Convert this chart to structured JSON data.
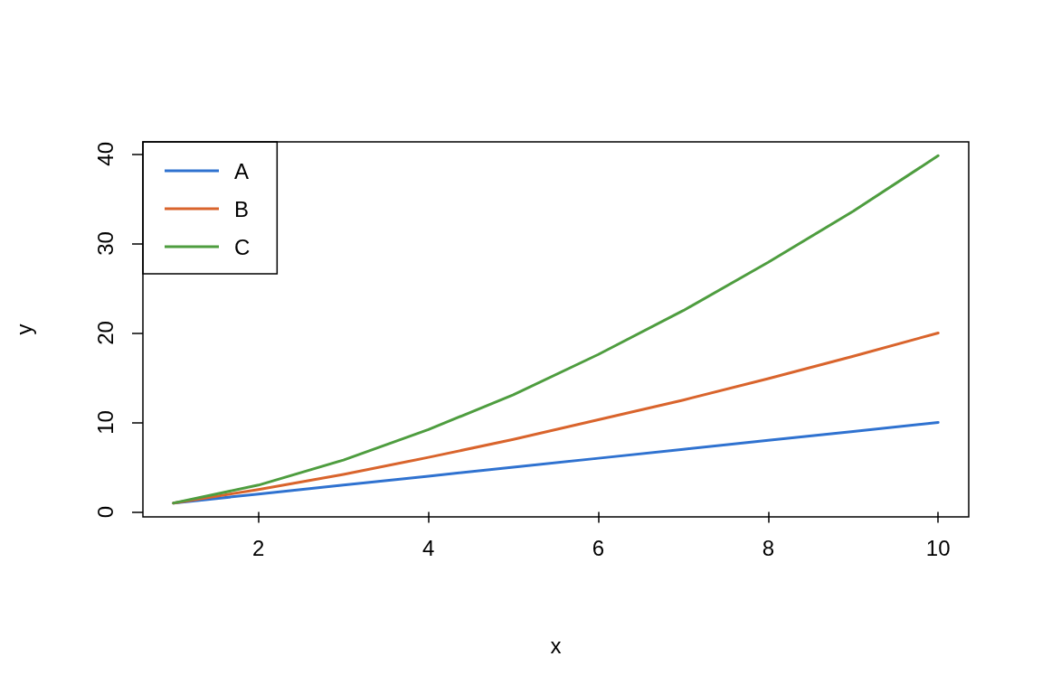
{
  "chart_data": {
    "type": "line",
    "xlabel": "x",
    "ylabel": "y",
    "x": [
      1,
      2,
      3,
      4,
      5,
      6,
      7,
      8,
      9,
      10
    ],
    "series": [
      {
        "name": "A",
        "color": "#2f72d0",
        "values": [
          1,
          2,
          3,
          4,
          5,
          6,
          7,
          8,
          9,
          10
        ]
      },
      {
        "name": "B",
        "color": "#d9642c",
        "values": [
          1,
          2.5,
          4.2,
          6.1,
          8.1,
          10.3,
          12.5,
          14.9,
          17.4,
          20.0
        ]
      },
      {
        "name": "C",
        "color": "#4e9d3f",
        "values": [
          1,
          3.0,
          5.8,
          9.2,
          13.1,
          17.6,
          22.5,
          27.9,
          33.6,
          39.8
        ]
      }
    ],
    "xlim": [
      0.64,
      10.36
    ],
    "ylim": [
      -0.55,
      41.35
    ],
    "xticks": [
      2,
      4,
      6,
      8,
      10
    ],
    "yticks": [
      0,
      10,
      20,
      30,
      40
    ],
    "grid": false,
    "legend": "top left",
    "line_style": "solid",
    "marker": "none"
  }
}
